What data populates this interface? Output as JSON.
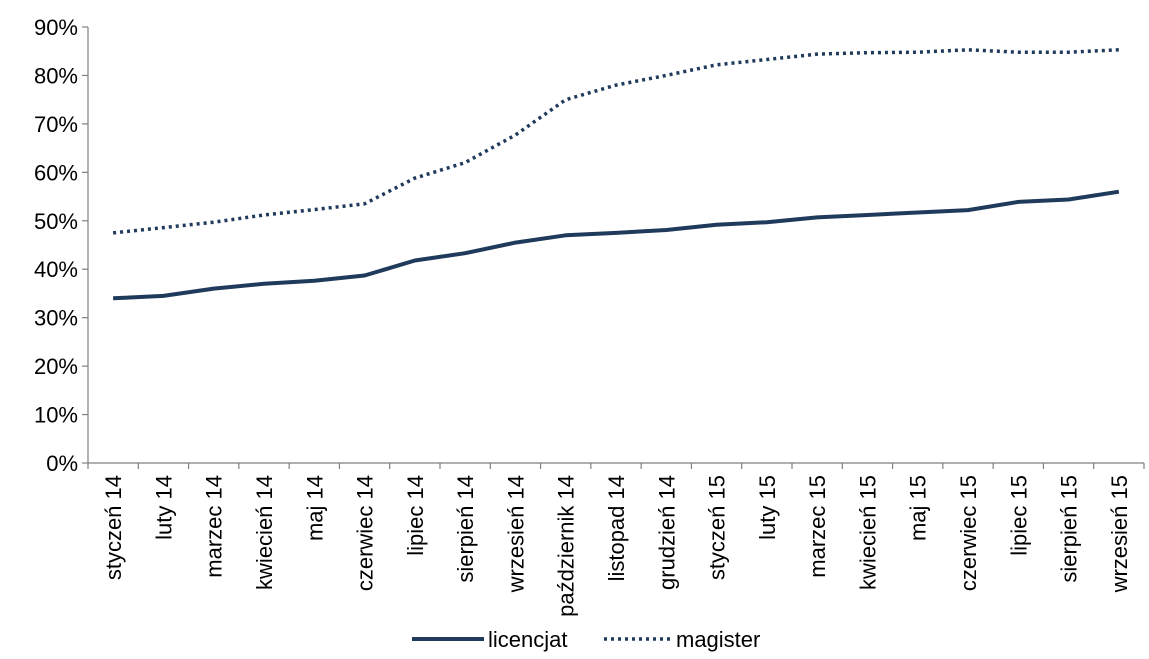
{
  "chart_data": {
    "type": "line",
    "categories": [
      "styczeń 14",
      "luty 14",
      "marzec 14",
      "kwiecień 14",
      "maj 14",
      "czerwiec 14",
      "lipiec 14",
      "sierpień 14",
      "wrzesień 14",
      "październik 14",
      "listopad 14",
      "grudzień 14",
      "styczeń 15",
      "luty 15",
      "marzec 15",
      "kwiecień 15",
      "maj 15",
      "czerwiec 15",
      "lipiec 15",
      "sierpień 15",
      "wrzesień 15"
    ],
    "series": [
      {
        "name": "licencjat",
        "style": "solid",
        "color": "#1f3a5a",
        "values": [
          34,
          34.5,
          36,
          37,
          37.6,
          38.7,
          41.8,
          43.3,
          45.5,
          47,
          47.5,
          48.1,
          49.2,
          49.7,
          50.7,
          51.2,
          51.7,
          52.2,
          53.9,
          54.4,
          56
        ]
      },
      {
        "name": "magister",
        "style": "dotted",
        "color": "#1f3a5a",
        "values": [
          47.5,
          48.6,
          49.7,
          51.2,
          52.3,
          53.5,
          58.8,
          62,
          67.7,
          75,
          78,
          80,
          82.2,
          83.3,
          84.4,
          84.7,
          84.8,
          85.3,
          84.8,
          84.8,
          85.3
        ]
      }
    ],
    "y_ticks": [
      "0%",
      "10%",
      "20%",
      "30%",
      "40%",
      "50%",
      "60%",
      "70%",
      "80%",
      "90%"
    ],
    "ylim": [
      0,
      90
    ],
    "legend_position": "bottom",
    "grid": false
  }
}
